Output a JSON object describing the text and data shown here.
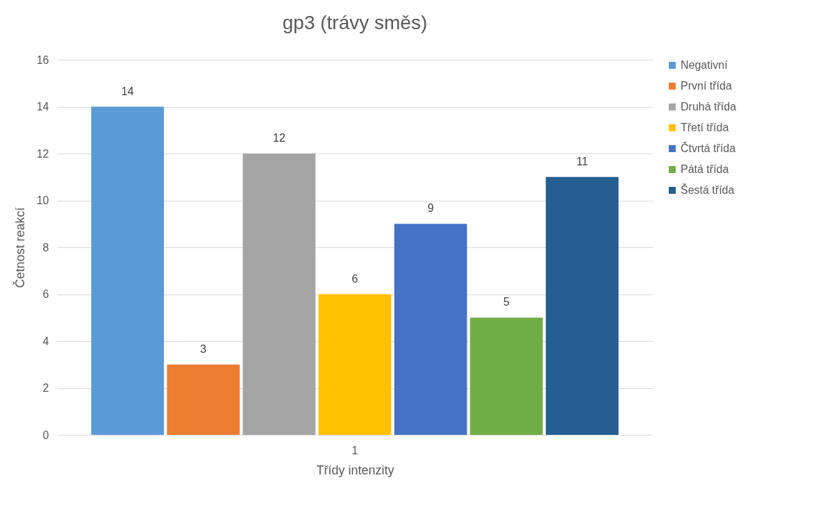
{
  "chart_data": {
    "type": "bar",
    "title": "gp3 (trávy směs)",
    "xlabel": "Třídy intenzity",
    "ylabel": "Četnost reakcí",
    "categories": [
      "1"
    ],
    "series": [
      {
        "name": "Negativní",
        "color": "#5b9bd5",
        "values": [
          14
        ]
      },
      {
        "name": "První třída",
        "color": "#ed7d31",
        "values": [
          3
        ]
      },
      {
        "name": "Druhá třída",
        "color": "#a5a5a5",
        "values": [
          12
        ]
      },
      {
        "name": "Třetí třída",
        "color": "#ffc000",
        "values": [
          6
        ]
      },
      {
        "name": "Čtvrtá třída",
        "color": "#4472c4",
        "values": [
          9
        ]
      },
      {
        "name": "Pátá třída",
        "color": "#70ad47",
        "values": [
          5
        ]
      },
      {
        "name": "Šestá třída",
        "color": "#255e91",
        "values": [
          11
        ]
      }
    ],
    "ylim": [
      0,
      16
    ],
    "yticks": [
      0,
      2,
      4,
      6,
      8,
      10,
      12,
      14,
      16
    ],
    "grid": "y",
    "legend": "right",
    "data_labels": true
  }
}
